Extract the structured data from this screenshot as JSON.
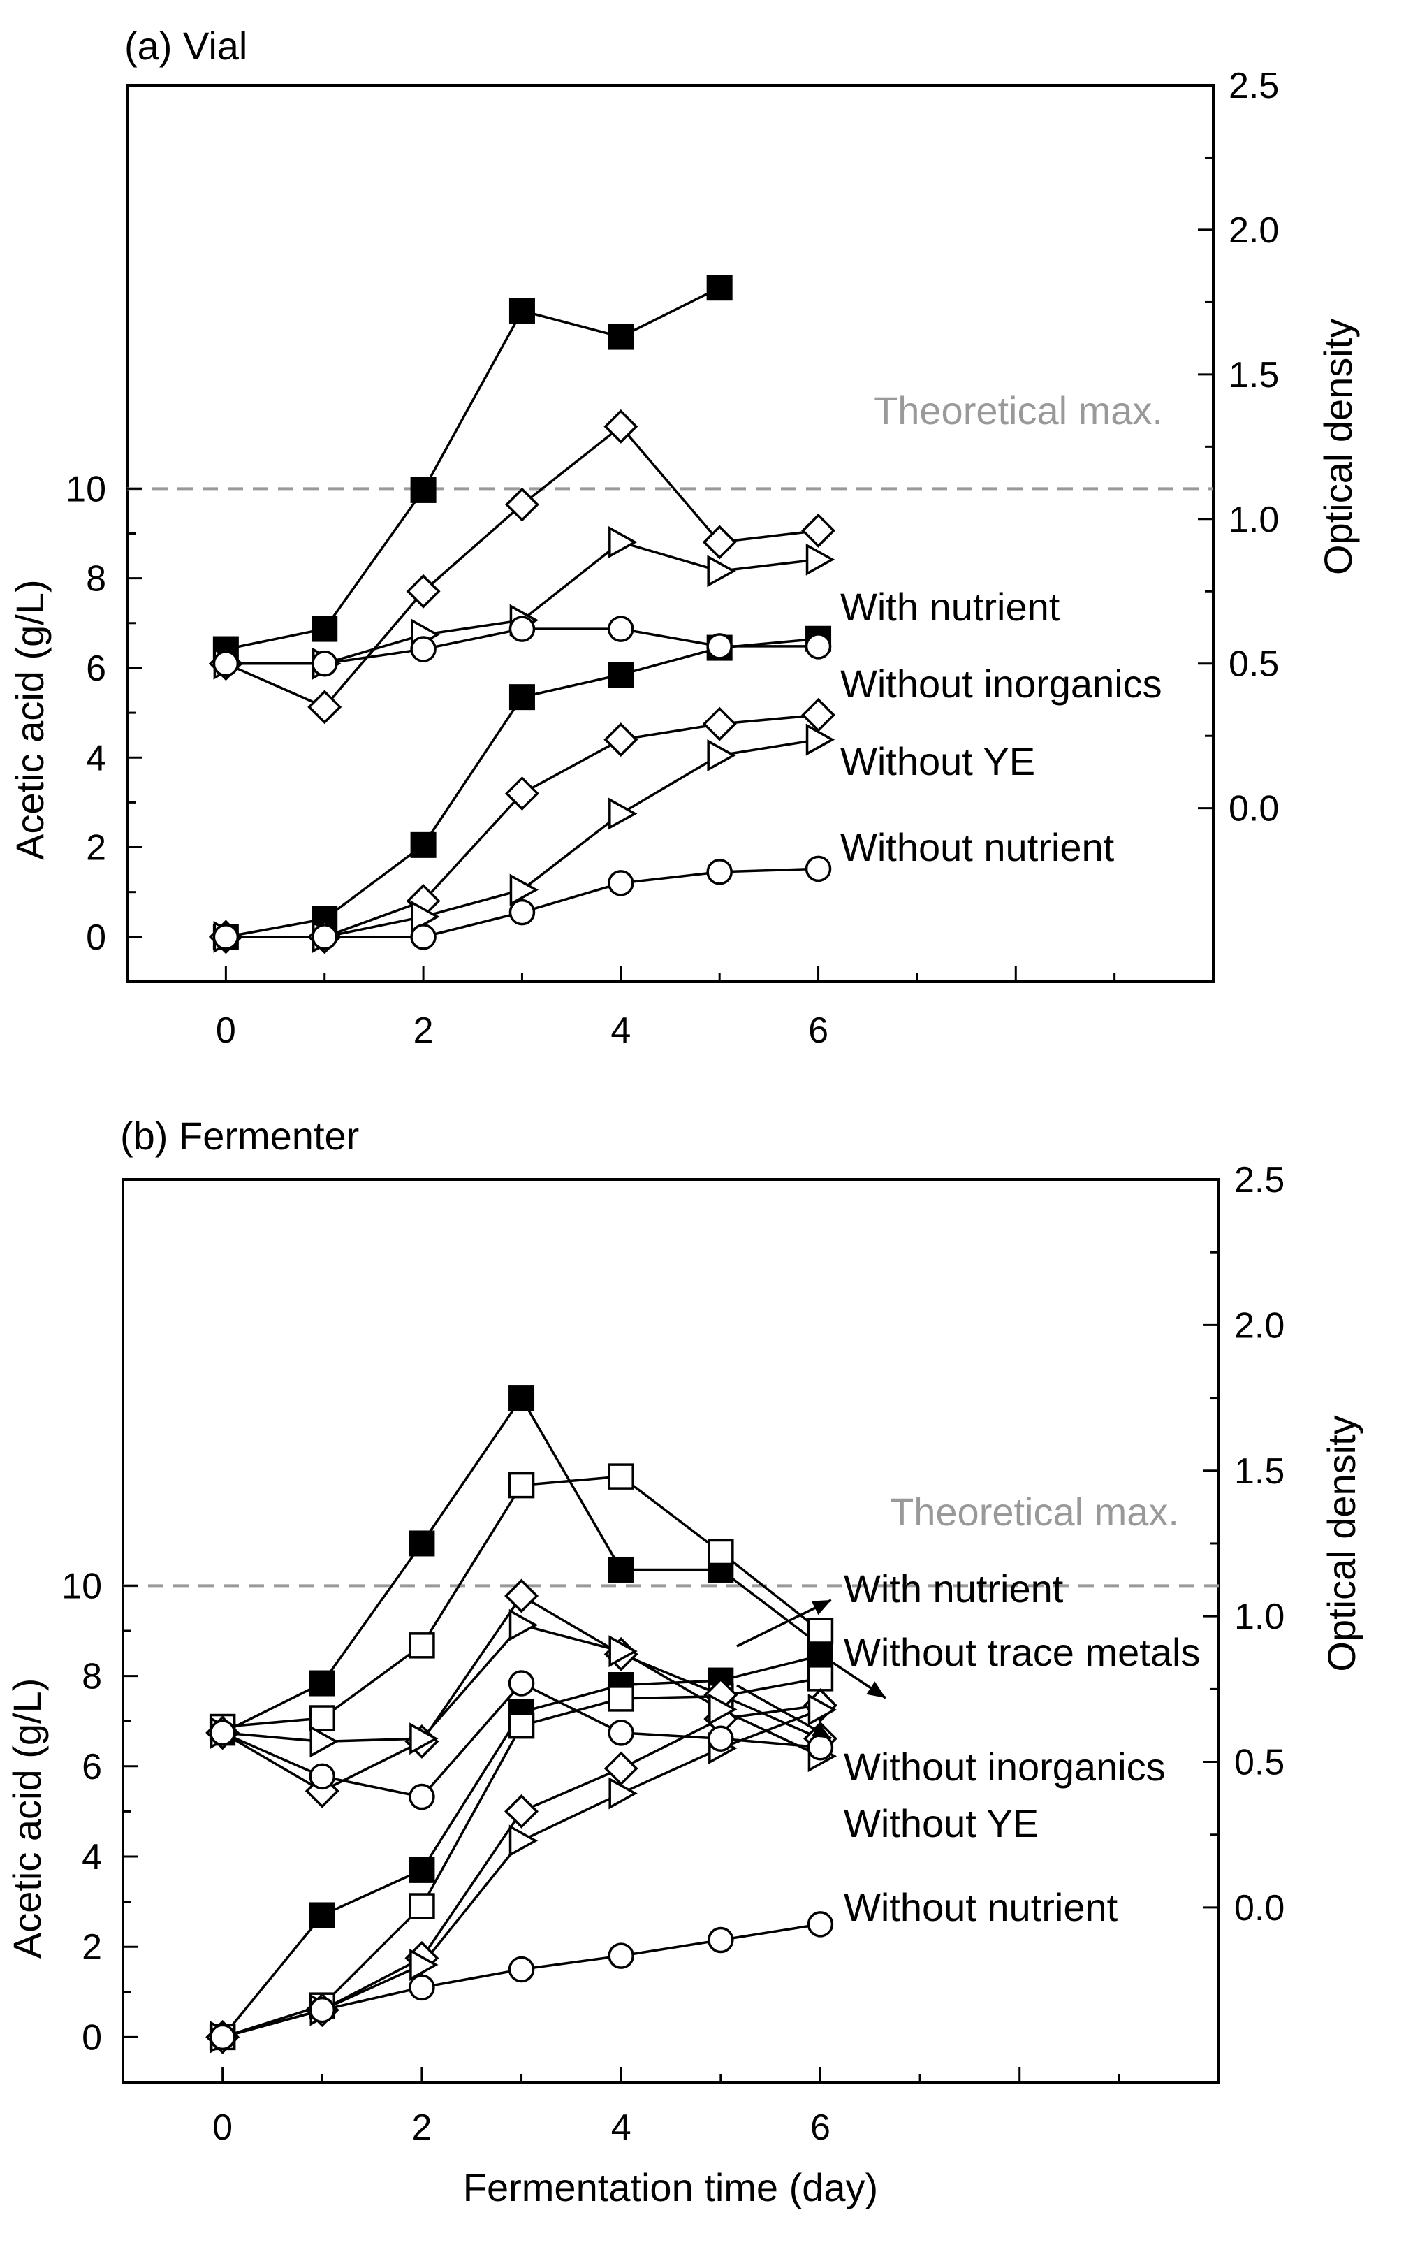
{
  "chart_data": [
    {
      "type": "line",
      "title": "(a) Vial",
      "xlabel": "",
      "ylabel": "Acetic acid (g/L)",
      "y2label": "Optical density",
      "x": [
        0,
        1,
        2,
        3,
        4,
        5,
        6
      ],
      "xlim": [
        -1,
        10
      ],
      "xticks": [
        0,
        2,
        4,
        6
      ],
      "ylim": [
        -1,
        19
      ],
      "yticks": [
        0,
        2,
        4,
        6,
        8,
        10
      ],
      "y2lim": [
        -0.6,
        2.5
      ],
      "y2ticks": [
        0.0,
        0.5,
        1.0,
        1.5,
        2.0,
        2.5
      ],
      "y2ticklabels": [
        "0.0",
        "0.5",
        "1.0",
        "1.5",
        "2.0",
        "2.5"
      ],
      "theoretical_max": {
        "value": 10,
        "label": "Theoretical max."
      },
      "series": [
        {
          "name": "With nutrient",
          "marker": "square-filled",
          "acetic": [
            0,
            0.4,
            2.05,
            5.35,
            5.85,
            6.45,
            6.65
          ],
          "od": [
            0.55,
            0.62,
            1.1,
            1.72,
            1.63,
            1.8,
            null
          ]
        },
        {
          "name": "Without inorganics",
          "marker": "diamond-open",
          "acetic": [
            0,
            0,
            0.8,
            3.2,
            4.4,
            4.75,
            4.95
          ],
          "od": [
            0.5,
            0.35,
            0.75,
            1.05,
            1.32,
            0.92,
            0.96
          ]
        },
        {
          "name": "Without YE",
          "marker": "triangle-right-open",
          "acetic": [
            0,
            0,
            0.45,
            1.05,
            2.75,
            4.05,
            4.4
          ],
          "od": [
            0.5,
            0.5,
            0.6,
            0.65,
            0.92,
            0.82,
            0.86
          ]
        },
        {
          "name": "Without nutrient",
          "marker": "circle-open",
          "acetic": [
            0,
            0,
            0,
            0.55,
            1.2,
            1.45,
            1.52
          ],
          "od": [
            0.5,
            0.5,
            0.55,
            0.62,
            0.62,
            0.56,
            0.56
          ]
        }
      ]
    },
    {
      "type": "line",
      "title": "(b) Fermenter",
      "xlabel": "Fermentation time (day)",
      "ylabel": "Acetic acid (g/L)",
      "y2label": "Optical density",
      "x": [
        0,
        1,
        2,
        3,
        4,
        5,
        6
      ],
      "xlim": [
        -1,
        10
      ],
      "xticks": [
        0,
        2,
        4,
        6
      ],
      "ylim": [
        -1,
        19
      ],
      "yticks": [
        0,
        2,
        4,
        6,
        8,
        10
      ],
      "y2lim": [
        -0.6,
        2.5
      ],
      "y2ticks": [
        0.0,
        0.5,
        1.0,
        1.5,
        2.0,
        2.5
      ],
      "y2ticklabels": [
        "0.0",
        "0.5",
        "1.0",
        "1.5",
        "2.0",
        "2.5"
      ],
      "theoretical_max": {
        "value": 10,
        "label": "Theoretical max."
      },
      "series": [
        {
          "name": "With nutrient",
          "marker": "square-filled",
          "acetic": [
            0,
            2.7,
            3.7,
            7.2,
            7.8,
            7.9,
            8.45
          ],
          "od": [
            0.6,
            0.77,
            1.25,
            1.75,
            1.16,
            1.16,
            0.9
          ]
        },
        {
          "name": "Without trace metals",
          "marker": "square-open",
          "acetic": [
            0,
            0.7,
            2.9,
            6.9,
            7.5,
            7.55,
            7.95
          ],
          "od": [
            0.62,
            0.65,
            0.9,
            1.45,
            1.48,
            1.22,
            0.95
          ]
        },
        {
          "name": "Without inorganics",
          "marker": "diamond-open",
          "acetic": [
            0,
            0.6,
            1.75,
            5.0,
            5.95,
            7.05,
            7.35
          ],
          "od": [
            0.6,
            0.4,
            0.57,
            1.07,
            0.87,
            0.73,
            0.58
          ]
        },
        {
          "name": "Without YE",
          "marker": "triangle-right-open",
          "acetic": [
            0,
            0.6,
            1.6,
            4.35,
            5.4,
            6.4,
            7.25
          ],
          "od": [
            0.6,
            0.57,
            0.58,
            0.97,
            0.88,
            0.68,
            0.52
          ]
        },
        {
          "name": "Without nutrient",
          "marker": "circle-open",
          "acetic": [
            0,
            0.6,
            1.1,
            1.5,
            1.8,
            2.15,
            2.5
          ],
          "od": [
            0.6,
            0.45,
            0.38,
            0.77,
            0.6,
            0.58,
            0.55
          ]
        }
      ]
    }
  ]
}
